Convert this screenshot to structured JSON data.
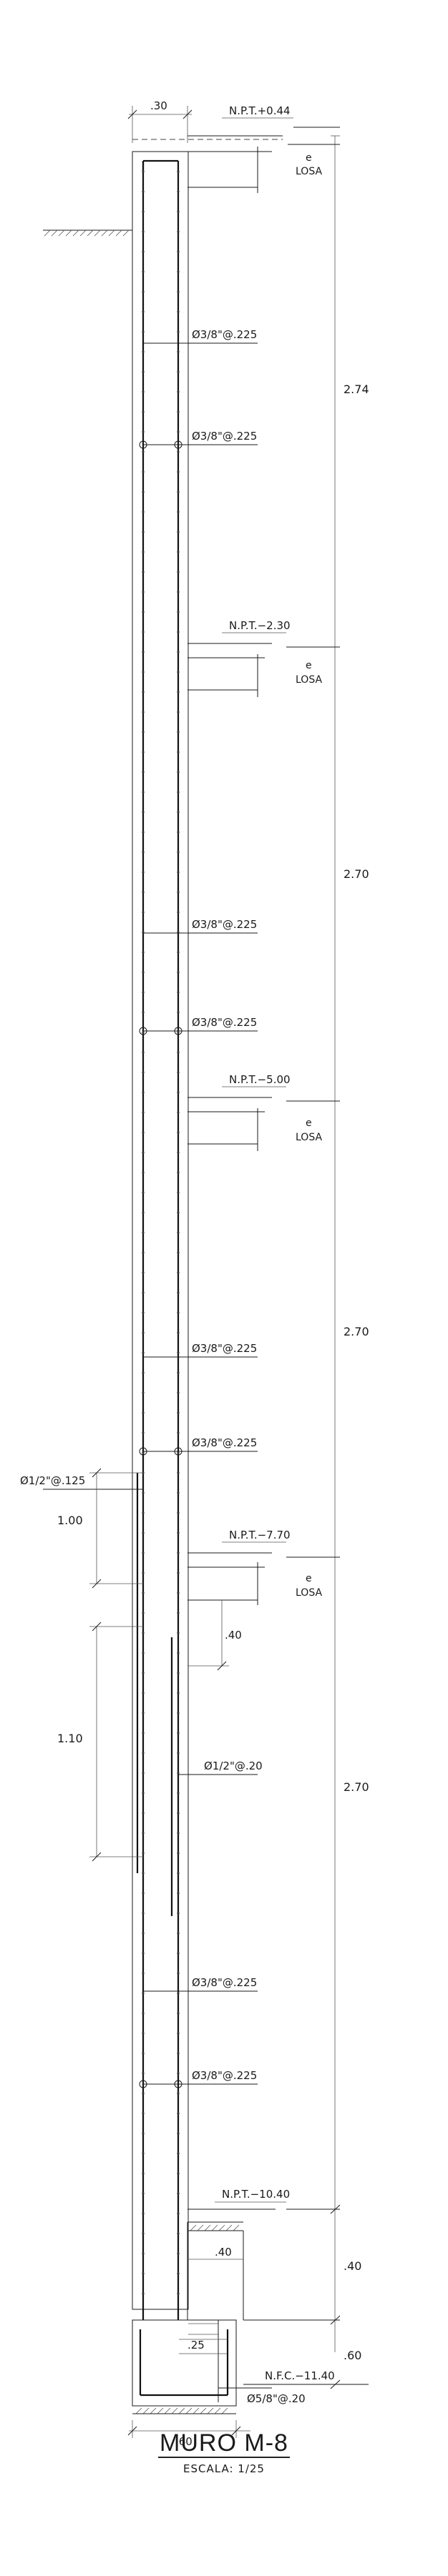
{
  "drawing": {
    "title": "MURO M-8",
    "scale": "ESCALA:  1/25"
  },
  "levels": [
    {
      "id": "npt1",
      "label": "N.P.T.+0.44"
    },
    {
      "id": "npt2",
      "label": "N.P.T.−2.30"
    },
    {
      "id": "npt3",
      "label": "N.P.T.−5.00"
    },
    {
      "id": "npt4",
      "label": "N.P.T.−7.70"
    },
    {
      "id": "npt5",
      "label": "N.P.T.−10.40"
    },
    {
      "id": "nfc",
      "label": "N.F.C.−11.40"
    }
  ],
  "slab_label": {
    "top": "e",
    "bottom": "LOSA"
  },
  "rebar_labels": {
    "horizontal": "Ø3/8\"@.225",
    "dowel_top": "Ø1/2\"@.125",
    "dowel_bottom": "Ø1/2\"@.20",
    "footing": "Ø5/8\"@.20"
  },
  "dimensions": {
    "wall_thickness": ".30",
    "story_heights": [
      "2.74",
      "2.70",
      "2.70",
      "2.70"
    ],
    "dowel_lap_top": "1.00",
    "dowel_lap_bottom": "1.10",
    "slab_offset": ".40",
    "footing_step": ".40",
    "footing_depth": ".60",
    "footing_inner": ".25",
    "footing_width": ".60",
    "right_step": ".40"
  }
}
